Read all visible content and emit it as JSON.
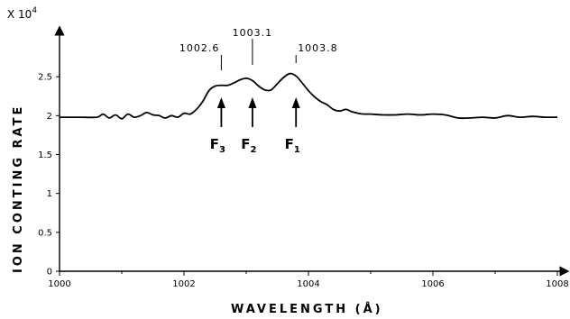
{
  "chart_data": {
    "type": "line",
    "title": "",
    "xlabel": "WAVELENGTH  (Å)",
    "ylabel": "ION CONTING RATE",
    "y_multiplier": "X 10",
    "y_multiplier_exp": "4",
    "xlim": [
      1000,
      1008
    ],
    "ylim": [
      0,
      3.0
    ],
    "xticks": [
      1000,
      1002,
      1004,
      1006,
      1008
    ],
    "xtick_labels": [
      "1000",
      "1002",
      "1004",
      "1006",
      "1008"
    ],
    "yticks": [
      0,
      0.5,
      1,
      1.5,
      2,
      2.5
    ],
    "ytick_labels": [
      "0",
      "0.5",
      "1",
      "1.5",
      "2",
      "2.5"
    ],
    "grid": false,
    "series": [
      {
        "x": [
          1000.0,
          1000.3,
          1000.6,
          1000.7,
          1000.8,
          1000.9,
          1001.0,
          1001.1,
          1001.2,
          1001.3,
          1001.4,
          1001.5,
          1001.6,
          1001.7,
          1001.8,
          1001.9,
          1002.0,
          1002.1,
          1002.2,
          1002.3,
          1002.4,
          1002.5,
          1002.6,
          1002.7,
          1002.8,
          1002.9,
          1003.0,
          1003.1,
          1003.2,
          1003.3,
          1003.4,
          1003.5,
          1003.6,
          1003.7,
          1003.8,
          1003.9,
          1004.0,
          1004.1,
          1004.2,
          1004.3,
          1004.4,
          1004.5,
          1004.6,
          1004.7,
          1004.8,
          1004.9,
          1005.0,
          1005.2,
          1005.4,
          1005.6,
          1005.8,
          1006.0,
          1006.2,
          1006.4,
          1006.6,
          1006.8,
          1007.0,
          1007.2,
          1007.4,
          1007.6,
          1007.8,
          1008.0
        ],
        "y": [
          1.98,
          1.98,
          1.98,
          2.02,
          1.97,
          2.01,
          1.96,
          2.02,
          1.98,
          2.0,
          2.04,
          2.01,
          2.0,
          1.97,
          2.0,
          1.98,
          2.03,
          2.02,
          2.08,
          2.18,
          2.32,
          2.38,
          2.39,
          2.39,
          2.42,
          2.46,
          2.48,
          2.45,
          2.38,
          2.33,
          2.33,
          2.41,
          2.49,
          2.54,
          2.51,
          2.42,
          2.32,
          2.24,
          2.18,
          2.14,
          2.08,
          2.06,
          2.08,
          2.05,
          2.03,
          2.02,
          2.02,
          2.01,
          2.01,
          2.02,
          2.01,
          2.02,
          2.01,
          1.97,
          1.97,
          1.98,
          1.97,
          2.0,
          1.98,
          1.99,
          1.98,
          1.98
        ]
      }
    ],
    "annotations": [
      {
        "label": "1002.6",
        "x": 1002.6
      },
      {
        "label": "1003.1",
        "x": 1003.1
      },
      {
        "label": "1003.8",
        "x": 1003.8
      }
    ],
    "peaks": [
      {
        "letter": "F",
        "sub": "3",
        "x": 1002.6
      },
      {
        "letter": "F",
        "sub": "2",
        "x": 1003.1
      },
      {
        "letter": "F",
        "sub": "1",
        "x": 1003.8
      }
    ]
  }
}
